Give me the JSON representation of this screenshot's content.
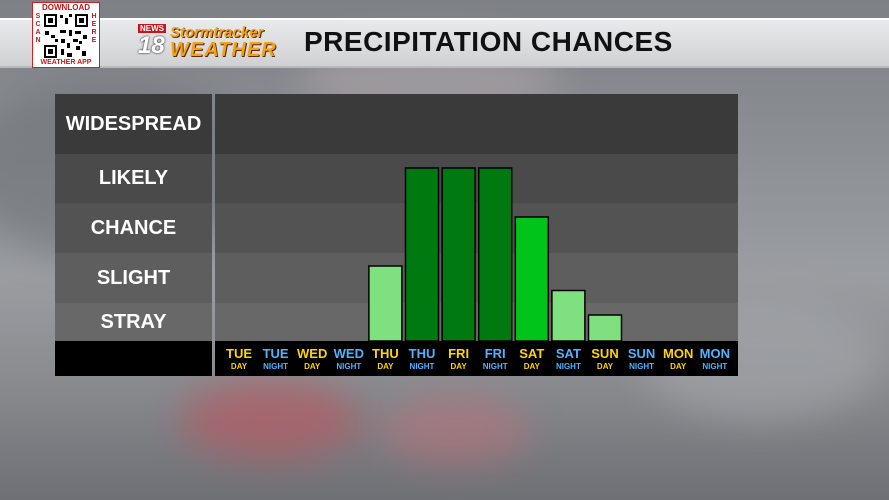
{
  "header": {
    "title": "PRECIPITATION CHANCES",
    "qr": {
      "top": "DOWNLOAD",
      "left": "SCAN",
      "right": "HERE",
      "bottom": "WEATHER APP"
    },
    "logo": {
      "news": "NEWS",
      "number": "18",
      "brand_top": "Stormtracker",
      "brand_bottom": "WEATHER"
    }
  },
  "colors": {
    "day_label": "#ffd400",
    "night_label": "#4fb3ff",
    "bar_light": "#7ee07e",
    "bar_medium": "#00c41a",
    "bar_dark": "#007a10"
  },
  "chart_data": {
    "type": "bar",
    "title": "PRECIPITATION CHANCES",
    "levels": [
      "WIDESPREAD",
      "LIKELY",
      "CHANCE",
      "SLIGHT",
      "STRAY"
    ],
    "categories": [
      {
        "day": "TUE",
        "part": "DAY"
      },
      {
        "day": "TUE",
        "part": "NIGHT"
      },
      {
        "day": "WED",
        "part": "DAY"
      },
      {
        "day": "WED",
        "part": "NIGHT"
      },
      {
        "day": "THU",
        "part": "DAY"
      },
      {
        "day": "THU",
        "part": "NIGHT"
      },
      {
        "day": "FRI",
        "part": "DAY"
      },
      {
        "day": "FRI",
        "part": "NIGHT"
      },
      {
        "day": "SAT",
        "part": "DAY"
      },
      {
        "day": "SAT",
        "part": "NIGHT"
      },
      {
        "day": "SUN",
        "part": "DAY"
      },
      {
        "day": "SUN",
        "part": "NIGHT"
      },
      {
        "day": "MON",
        "part": "DAY"
      },
      {
        "day": "MON",
        "part": "NIGHT"
      }
    ],
    "values": [
      0,
      0,
      0,
      0,
      1.5,
      3.5,
      3.5,
      3.5,
      2.5,
      1.0,
      0.5,
      0,
      0,
      0
    ],
    "value_scale": "0 = none, 0.5 = STRAY, 1.5 = SLIGHT, 2.5 = CHANCE, 3.5 = LIKELY, 4.5 = WIDESPREAD",
    "bar_shades": [
      "none",
      "none",
      "none",
      "none",
      "light",
      "dark",
      "dark",
      "dark",
      "medium",
      "light",
      "light",
      "none",
      "none",
      "none"
    ],
    "ylim": [
      0,
      5
    ]
  }
}
